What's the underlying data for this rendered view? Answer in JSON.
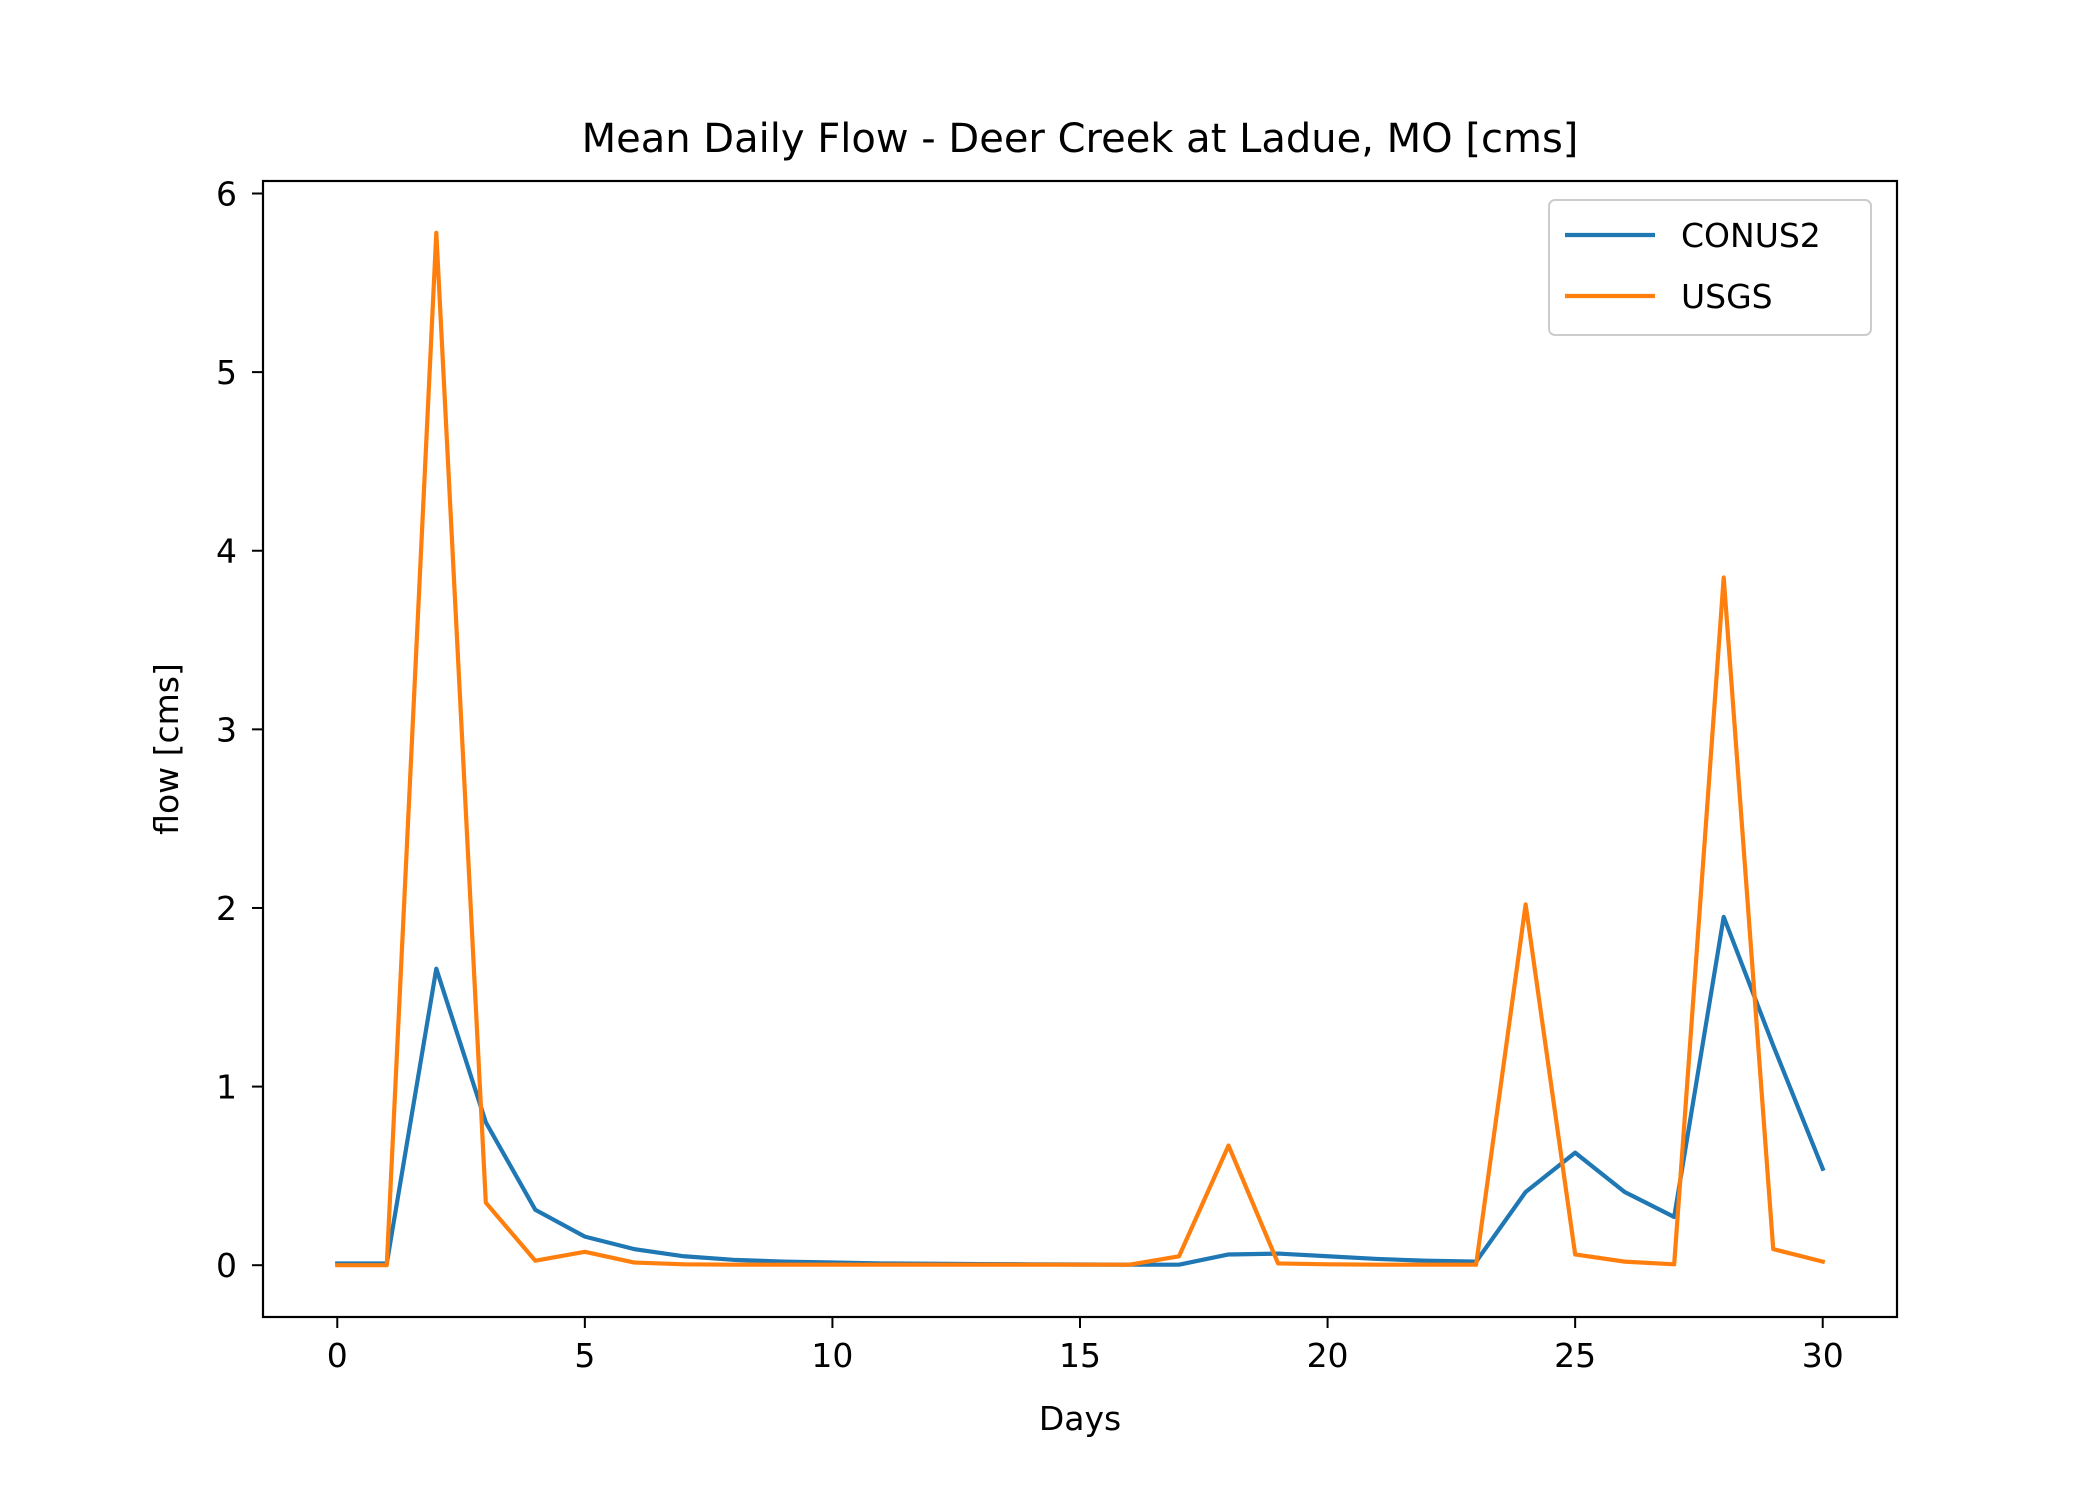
{
  "chart_data": {
    "type": "line",
    "title": "Mean Daily Flow - Deer Creek at Ladue, MO [cms]",
    "xlabel": "Days",
    "ylabel": "flow [cms]",
    "xlim": [
      -1.5,
      31.5
    ],
    "ylim": [
      -0.29,
      6.07
    ],
    "xticks": [
      0,
      5,
      10,
      15,
      20,
      25,
      30
    ],
    "yticks": [
      0,
      1,
      2,
      3,
      4,
      5,
      6
    ],
    "grid": false,
    "legend_position": "top-right",
    "x": [
      0,
      1,
      2,
      3,
      4,
      5,
      6,
      7,
      8,
      9,
      10,
      11,
      12,
      13,
      14,
      15,
      16,
      17,
      18,
      19,
      20,
      21,
      22,
      23,
      24,
      25,
      26,
      27,
      28,
      29,
      30
    ],
    "series": [
      {
        "name": "CONUS2",
        "color": "#1f77b4",
        "values": [
          0.01,
          0.01,
          1.66,
          0.8,
          0.31,
          0.16,
          0.09,
          0.05,
          0.03,
          0.02,
          0.015,
          0.01,
          0.008,
          0.006,
          0.005,
          0.004,
          0.003,
          0.003,
          0.06,
          0.065,
          0.05,
          0.035,
          0.025,
          0.02,
          0.41,
          0.63,
          0.41,
          0.27,
          1.95,
          1.23,
          0.54
        ]
      },
      {
        "name": "USGS",
        "color": "#ff7f0e",
        "values": [
          0.0,
          0.0,
          5.78,
          0.35,
          0.025,
          0.075,
          0.015,
          0.005,
          0.003,
          0.003,
          0.003,
          0.003,
          0.003,
          0.003,
          0.003,
          0.003,
          0.003,
          0.05,
          0.67,
          0.01,
          0.005,
          0.003,
          0.003,
          0.003,
          2.02,
          0.06,
          0.02,
          0.005,
          3.85,
          0.09,
          0.02
        ]
      }
    ]
  }
}
